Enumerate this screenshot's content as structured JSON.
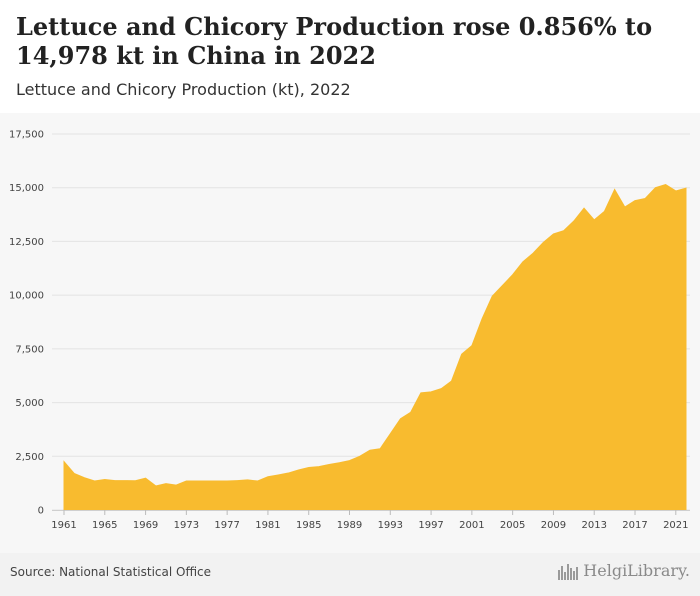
{
  "header": {
    "title": "Lettuce and Chicory Production rose 0.856% to 14,978 kt in China in 2022",
    "subtitle": "Lettuce and Chicory Production (kt), 2022"
  },
  "footer": {
    "source": "Source: National Statistical Office",
    "logo_text": "HelgiLibrary.",
    "logo_icon": "bar-skyline-icon"
  },
  "colors": {
    "area_fill": "#f8bb2f",
    "grid": "#e3e3e3"
  },
  "chart_data": {
    "type": "area",
    "title": "Lettuce and Chicory Production (kt), 2022",
    "xlabel": "",
    "ylabel": "",
    "xlim": [
      1961,
      2022
    ],
    "ylim": [
      0,
      17500
    ],
    "grid": true,
    "y_ticks": [
      0,
      2500,
      5000,
      7500,
      10000,
      12500,
      15000,
      17500
    ],
    "y_tick_labels": [
      "0",
      "2,500",
      "5,000",
      "7,500",
      "10,000",
      "12,500",
      "15,000",
      "17,500"
    ],
    "x_ticks": [
      1961,
      1965,
      1969,
      1973,
      1977,
      1981,
      1985,
      1989,
      1993,
      1997,
      2001,
      2005,
      2009,
      2013,
      2017,
      2021
    ],
    "x": [
      1961,
      1962,
      1963,
      1964,
      1965,
      1966,
      1967,
      1968,
      1969,
      1970,
      1971,
      1972,
      1973,
      1974,
      1975,
      1976,
      1977,
      1978,
      1979,
      1980,
      1981,
      1982,
      1983,
      1984,
      1985,
      1986,
      1987,
      1988,
      1989,
      1990,
      1991,
      1992,
      1993,
      1994,
      1995,
      1996,
      1997,
      1998,
      1999,
      2000,
      2001,
      2002,
      2003,
      2004,
      2005,
      2006,
      2007,
      2008,
      2009,
      2010,
      2011,
      2012,
      2013,
      2014,
      2015,
      2016,
      2017,
      2018,
      2019,
      2020,
      2021,
      2022
    ],
    "values": [
      2250,
      1700,
      1500,
      1350,
      1420,
      1370,
      1370,
      1360,
      1480,
      1120,
      1230,
      1160,
      1350,
      1350,
      1350,
      1350,
      1350,
      1370,
      1400,
      1350,
      1550,
      1630,
      1720,
      1860,
      1980,
      2020,
      2120,
      2200,
      2300,
      2500,
      2780,
      2850,
      3550,
      4250,
      4550,
      5450,
      5500,
      5650,
      6000,
      7250,
      7650,
      8900,
      9950,
      10450,
      10950,
      11550,
      11950,
      12450,
      12850,
      13000,
      13450,
      14050,
      13500,
      13900,
      14920,
      14100,
      14400,
      14500,
      15000,
      15150,
      14850,
      14978
    ]
  }
}
